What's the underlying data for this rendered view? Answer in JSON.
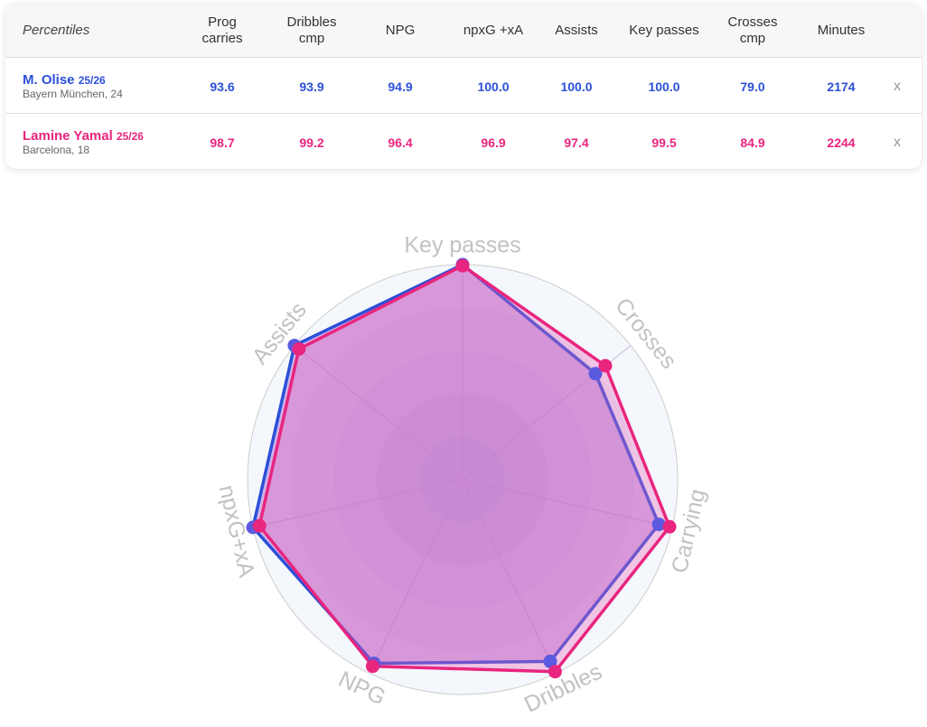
{
  "table": {
    "corner_label": "Percentiles",
    "columns": [
      {
        "line1": "Prog",
        "line2": "carries"
      },
      {
        "line1": "Dribbles",
        "line2": "cmp"
      },
      {
        "line1": "NPG",
        "line2": ""
      },
      {
        "line1": "npxG +xA",
        "line2": ""
      },
      {
        "line1": "Assists",
        "line2": ""
      },
      {
        "line1": "Key passes",
        "line2": ""
      },
      {
        "line1": "Crosses",
        "line2": "cmp"
      },
      {
        "line1": "Minutes",
        "line2": ""
      }
    ],
    "rows": [
      {
        "name": "M. Olise",
        "season": "25/26",
        "club": "Bayern München, 24",
        "color": "#2b50d8",
        "values": [
          "93.6",
          "93.9",
          "94.9",
          "100.0",
          "100.0",
          "100.0",
          "79.0",
          "2174"
        ],
        "remove": "x"
      },
      {
        "name": "Lamine Yamal",
        "season": "25/26",
        "club": "Barcelona, 18",
        "color": "#e8257f",
        "values": [
          "98.7",
          "99.2",
          "96.4",
          "96.9",
          "97.4",
          "99.5",
          "84.9",
          "2244"
        ],
        "remove": "x"
      }
    ]
  },
  "chart_data": {
    "type": "radar",
    "axes": [
      "Key passes",
      "Crosses",
      "Carrying",
      "Dribbles",
      "NPG",
      "npxG+xA",
      "Assists"
    ],
    "range": [
      0,
      100
    ],
    "series": [
      {
        "name": "M. Olise",
        "color": "#2b50d8",
        "values": [
          100.0,
          79.0,
          93.6,
          93.9,
          94.9,
          100.0,
          100.0
        ]
      },
      {
        "name": "Lamine Yamal",
        "color": "#e8257f",
        "values": [
          99.5,
          84.9,
          98.7,
          99.2,
          96.4,
          96.9,
          97.4
        ]
      }
    ]
  }
}
